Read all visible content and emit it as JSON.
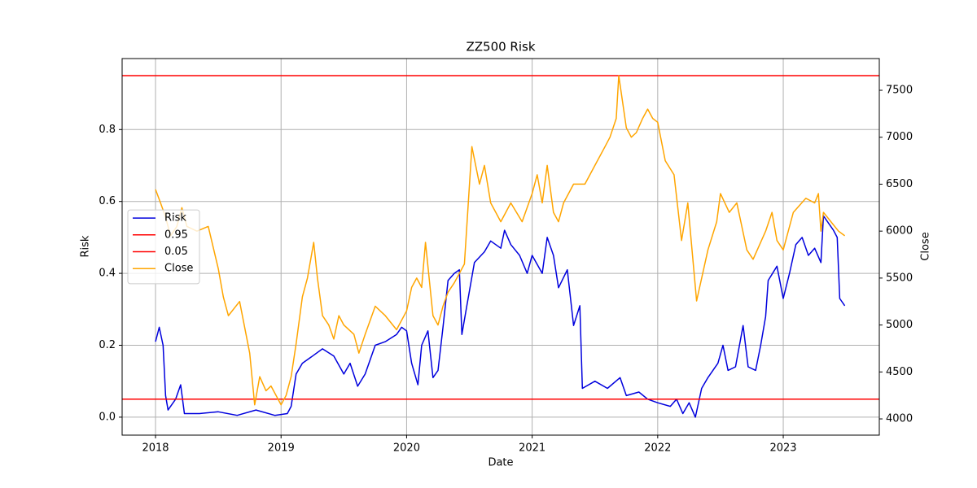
{
  "chart_data": {
    "type": "line",
    "title": "ZZ500 Risk",
    "xlabel": "Date",
    "ylabel": "Risk",
    "y2label": "Close",
    "grid": true,
    "legend": "center left",
    "xlim": [
      2017.734,
      2023.765
    ],
    "xticks": [
      2018,
      2019,
      2020,
      2021,
      2022,
      2023
    ],
    "ylim": [
      -0.05,
      0.9975
    ],
    "yticks": [
      {
        "value": 0,
        "label": "0.0"
      },
      0.2,
      0.4,
      0.6,
      0.8
    ],
    "y2lim": [
      3827,
      7838
    ],
    "y2ticks": [
      4000,
      4500,
      5000,
      5500,
      6000,
      6500,
      7000,
      7500
    ],
    "series": [
      {
        "name": "Risk",
        "color": "#0000dd",
        "x": [
          2018.0,
          2018.03,
          2018.06,
          2018.08,
          2018.1,
          2018.16,
          2018.2,
          2018.23,
          2018.35,
          2018.5,
          2018.65,
          2018.8,
          2018.95,
          2019.05,
          2019.08,
          2019.12,
          2019.17,
          2019.25,
          2019.33,
          2019.42,
          2019.5,
          2019.55,
          2019.61,
          2019.67,
          2019.75,
          2019.83,
          2019.92,
          2019.96,
          2020.0,
          2020.04,
          2020.09,
          2020.12,
          2020.17,
          2020.21,
          2020.25,
          2020.29,
          2020.33,
          2020.38,
          2020.42,
          2020.44,
          2020.48,
          2020.5,
          2020.54,
          2020.62,
          2020.67,
          2020.75,
          2020.78,
          2020.83,
          2020.9,
          2020.96,
          2021.0,
          2021.08,
          2021.12,
          2021.17,
          2021.21,
          2021.28,
          2021.33,
          2021.38,
          2021.4,
          2021.5,
          2021.6,
          2021.7,
          2021.75,
          2021.85,
          2021.92,
          2022.0,
          2022.1,
          2022.15,
          2022.2,
          2022.25,
          2022.3,
          2022.35,
          2022.4,
          2022.48,
          2022.52,
          2022.56,
          2022.62,
          2022.68,
          2022.72,
          2022.78,
          2022.82,
          2022.86,
          2022.88,
          2022.95,
          2023.0,
          2023.05,
          2023.1,
          2023.15,
          2023.2,
          2023.25,
          2023.3,
          2023.32,
          2023.4,
          2023.43,
          2023.45,
          2023.49
        ],
        "values": [
          0.21,
          0.25,
          0.2,
          0.06,
          0.02,
          0.05,
          0.09,
          0.01,
          0.01,
          0.015,
          0.005,
          0.02,
          0.005,
          0.01,
          0.03,
          0.12,
          0.15,
          0.17,
          0.19,
          0.17,
          0.12,
          0.15,
          0.086,
          0.12,
          0.2,
          0.21,
          0.23,
          0.25,
          0.24,
          0.15,
          0.09,
          0.2,
          0.24,
          0.11,
          0.13,
          0.25,
          0.38,
          0.4,
          0.41,
          0.23,
          0.31,
          0.35,
          0.43,
          0.46,
          0.49,
          0.47,
          0.52,
          0.48,
          0.45,
          0.4,
          0.45,
          0.4,
          0.5,
          0.45,
          0.36,
          0.41,
          0.255,
          0.31,
          0.08,
          0.1,
          0.08,
          0.11,
          0.06,
          0.07,
          0.05,
          0.04,
          0.03,
          0.05,
          0.01,
          0.04,
          0.0,
          0.08,
          0.11,
          0.15,
          0.2,
          0.13,
          0.14,
          0.255,
          0.14,
          0.13,
          0.2,
          0.28,
          0.38,
          0.42,
          0.33,
          0.4,
          0.48,
          0.5,
          0.45,
          0.47,
          0.43,
          0.56,
          0.52,
          0.5,
          0.33,
          0.31
        ]
      },
      {
        "name": "0.95",
        "color": "#ff0000",
        "value": 0.95
      },
      {
        "name": "0.05",
        "color": "#ff0000",
        "value": 0.05
      },
      {
        "name": "Close",
        "color": "#ffa500",
        "axis": "y2",
        "x": [
          2018.0,
          2018.04,
          2018.08,
          2018.12,
          2018.17,
          2018.21,
          2018.25,
          2018.33,
          2018.42,
          2018.5,
          2018.54,
          2018.58,
          2018.67,
          2018.75,
          2018.79,
          2018.83,
          2018.88,
          2018.92,
          2019.0,
          2019.04,
          2019.08,
          2019.12,
          2019.17,
          2019.21,
          2019.26,
          2019.29,
          2019.33,
          2019.38,
          2019.42,
          2019.46,
          2019.5,
          2019.58,
          2019.62,
          2019.67,
          2019.75,
          2019.83,
          2019.92,
          2020.0,
          2020.04,
          2020.08,
          2020.12,
          2020.15,
          2020.21,
          2020.25,
          2020.29,
          2020.33,
          2020.38,
          2020.42,
          2020.46,
          2020.52,
          2020.58,
          2020.62,
          2020.67,
          2020.75,
          2020.83,
          2020.92,
          2021.0,
          2021.04,
          2021.08,
          2021.12,
          2021.17,
          2021.21,
          2021.25,
          2021.33,
          2021.42,
          2021.5,
          2021.58,
          2021.62,
          2021.67,
          2021.69,
          2021.75,
          2021.79,
          2021.83,
          2021.88,
          2021.92,
          2021.96,
          2022.0,
          2022.06,
          2022.13,
          2022.19,
          2022.24,
          2022.31,
          2022.4,
          2022.47,
          2022.5,
          2022.57,
          2022.63,
          2022.71,
          2022.76,
          2022.86,
          2022.91,
          2022.95,
          2023.0,
          2023.08,
          2023.18,
          2023.25,
          2023.28,
          2023.3,
          2023.32,
          2023.38,
          2023.44,
          2023.49
        ],
        "values": [
          6444,
          6300,
          6150,
          5950,
          6050,
          6250,
          6050,
          6000,
          6050,
          5600,
          5300,
          5100,
          5250,
          4700,
          4150,
          4450,
          4300,
          4350,
          4150,
          4250,
          4450,
          4800,
          5300,
          5500,
          5880,
          5500,
          5100,
          5000,
          4850,
          5100,
          5000,
          4900,
          4700,
          4900,
          5200,
          5100,
          4950,
          5150,
          5400,
          5500,
          5400,
          5880,
          5100,
          5000,
          5200,
          5350,
          5450,
          5550,
          5650,
          6900,
          6500,
          6700,
          6300,
          6100,
          6300,
          6100,
          6400,
          6600,
          6300,
          6700,
          6200,
          6100,
          6300,
          6500,
          6500,
          6700,
          6900,
          7000,
          7200,
          7655,
          7100,
          7000,
          7050,
          7200,
          7300,
          7200,
          7160,
          6750,
          6600,
          5900,
          6300,
          5256,
          5800,
          6100,
          6400,
          6200,
          6300,
          5800,
          5700,
          6000,
          6200,
          5900,
          5800,
          6200,
          6350,
          6300,
          6400,
          6000,
          6200,
          6100,
          6000,
          5950
        ]
      }
    ]
  }
}
